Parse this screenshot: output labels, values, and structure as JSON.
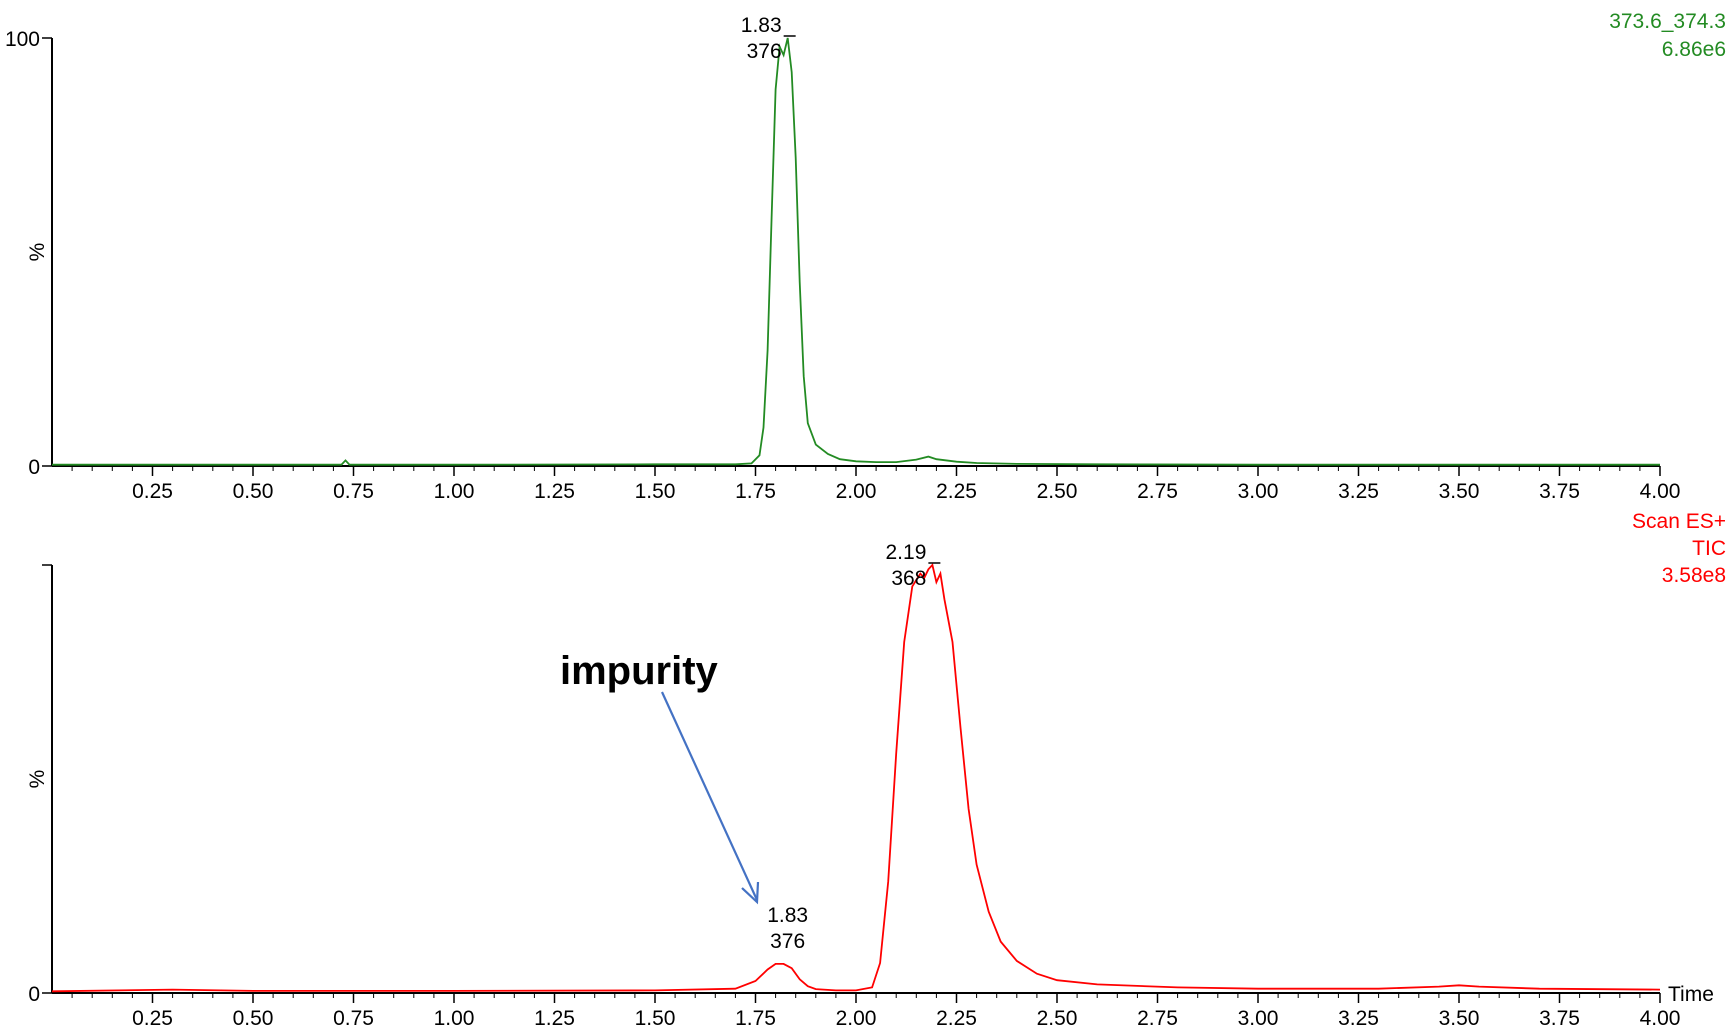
{
  "chart_data": [
    {
      "type": "line",
      "xlabel": "",
      "ylabel": "%",
      "xlim": [
        0,
        4.0
      ],
      "ylim": [
        0,
        100
      ],
      "x_ticks": [
        "0.25",
        "0.50",
        "0.75",
        "1.00",
        "1.25",
        "1.50",
        "1.75",
        "2.00",
        "2.25",
        "2.50",
        "2.75",
        "3.00",
        "3.25",
        "3.50",
        "3.75",
        "4.00"
      ],
      "y_tick_top": "100",
      "y_tick_zero": "0",
      "trace_info": [
        "373.6_374.3",
        "6.86e6"
      ],
      "color": "#238b23",
      "peak_labels": [
        {
          "time": "1.83",
          "mass": "376"
        }
      ],
      "series": [
        {
          "x": [
            0.0,
            0.5,
            0.72,
            0.73,
            0.74,
            1.0,
            1.5,
            1.7,
            1.74,
            1.76,
            1.77,
            1.78,
            1.79,
            1.8,
            1.81,
            1.82,
            1.83,
            1.84,
            1.85,
            1.86,
            1.87,
            1.88,
            1.9,
            1.93,
            1.96,
            2.0,
            2.05,
            2.1,
            2.15,
            2.18,
            2.2,
            2.25,
            2.3,
            2.4,
            2.6,
            3.0,
            3.5,
            4.0
          ],
          "y": [
            0.3,
            0.3,
            0.3,
            1.3,
            0.3,
            0.3,
            0.4,
            0.4,
            0.6,
            2.5,
            9,
            27,
            58,
            88,
            98,
            96,
            100,
            92,
            72,
            43,
            21,
            10,
            5,
            2.8,
            1.6,
            1.1,
            0.9,
            0.9,
            1.5,
            2.2,
            1.6,
            1.0,
            0.7,
            0.5,
            0.4,
            0.3,
            0.3,
            0.3
          ]
        }
      ]
    },
    {
      "type": "line",
      "xlabel": "Time",
      "ylabel": "%",
      "xlim": [
        0,
        4.0
      ],
      "ylim": [
        0,
        100
      ],
      "x_ticks": [
        "0.25",
        "0.50",
        "0.75",
        "1.00",
        "1.25",
        "1.50",
        "1.75",
        "2.00",
        "2.25",
        "2.50",
        "2.75",
        "3.00",
        "3.25",
        "3.50",
        "3.75",
        "4.00"
      ],
      "y_tick_zero": "0",
      "trace_info": [
        "Scan ES+",
        "TIC",
        "3.58e8"
      ],
      "color": "#ff0000",
      "peak_labels": [
        {
          "time": "2.19",
          "mass": "368"
        },
        {
          "time": "1.83",
          "mass": "376"
        }
      ],
      "annotations": [
        {
          "text": "impurity",
          "points_to_time": 1.83
        }
      ],
      "series": [
        {
          "x": [
            0.0,
            0.3,
            0.5,
            1.0,
            1.5,
            1.7,
            1.75,
            1.78,
            1.8,
            1.82,
            1.84,
            1.86,
            1.88,
            1.9,
            1.95,
            2.0,
            2.04,
            2.06,
            2.08,
            2.1,
            2.12,
            2.14,
            2.16,
            2.17,
            2.18,
            2.19,
            2.2,
            2.21,
            2.22,
            2.24,
            2.26,
            2.28,
            2.3,
            2.33,
            2.36,
            2.4,
            2.45,
            2.5,
            2.6,
            2.8,
            3.0,
            3.3,
            3.45,
            3.5,
            3.55,
            3.7,
            4.0
          ],
          "y": [
            0.4,
            0.8,
            0.5,
            0.5,
            0.6,
            1.0,
            2.8,
            5.5,
            6.8,
            6.8,
            5.8,
            3.2,
            1.6,
            0.9,
            0.6,
            0.6,
            1.3,
            7,
            26,
            56,
            82,
            95,
            98,
            97,
            99,
            100,
            96,
            98,
            92,
            82,
            62,
            43,
            30,
            19,
            12,
            7.5,
            4.5,
            3.0,
            2.0,
            1.3,
            1.0,
            1.0,
            1.5,
            1.8,
            1.5,
            1.0,
            0.8
          ]
        }
      ]
    }
  ]
}
